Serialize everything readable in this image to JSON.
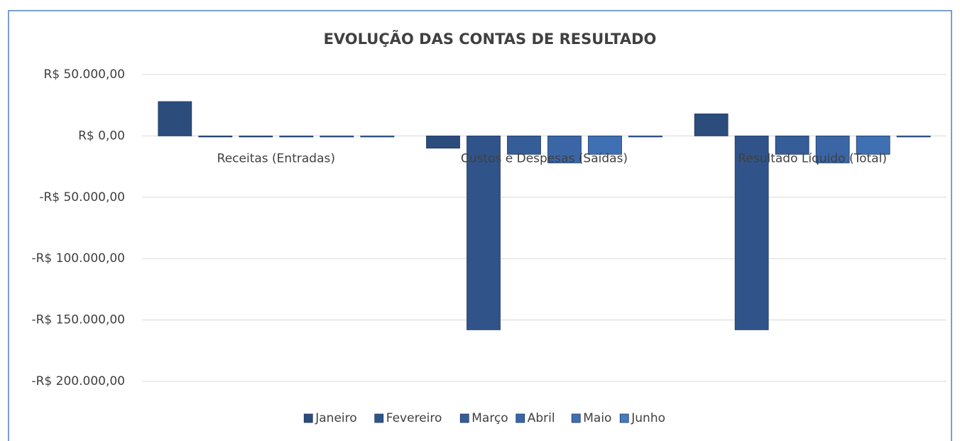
{
  "chart_data": {
    "type": "bar",
    "title": "EVOLUÇÃO DAS CONTAS DE RESULTADO",
    "categories": [
      "Receitas (Entradas)",
      "Custos e Despesas (Saídas)",
      "Resultado Líquido (Total)"
    ],
    "series": [
      {
        "name": "Janeiro",
        "color": "#2c4c7c",
        "values": [
          28000,
          -10000,
          18000
        ]
      },
      {
        "name": "Fevereiro",
        "color": "#30548a",
        "values": [
          0,
          -158000,
          -158000
        ]
      },
      {
        "name": "Março",
        "color": "#355d98",
        "values": [
          0,
          -15000,
          -15000
        ]
      },
      {
        "name": "Abril",
        "color": "#3a66a6",
        "values": [
          0,
          -22000,
          -22000
        ]
      },
      {
        "name": "Maio",
        "color": "#4070b4",
        "values": [
          0,
          -15000,
          -15000
        ]
      },
      {
        "name": "Junho",
        "color": "#467ac2",
        "values": [
          0,
          0,
          0
        ]
      }
    ],
    "ylim": [
      -200000,
      50000
    ],
    "yticks": [
      {
        "value": -200000,
        "label": "-R$ 200.000,00"
      },
      {
        "value": -150000,
        "label": "-R$ 150.000,00"
      },
      {
        "value": -100000,
        "label": "-R$ 100.000,00"
      },
      {
        "value": -50000,
        "label": "-R$ 50.000,00"
      },
      {
        "value": 0,
        "label": "R$ 0,00"
      },
      {
        "value": 50000,
        "label": "R$ 50.000,00"
      }
    ],
    "grid": true,
    "legend": "bottom"
  }
}
